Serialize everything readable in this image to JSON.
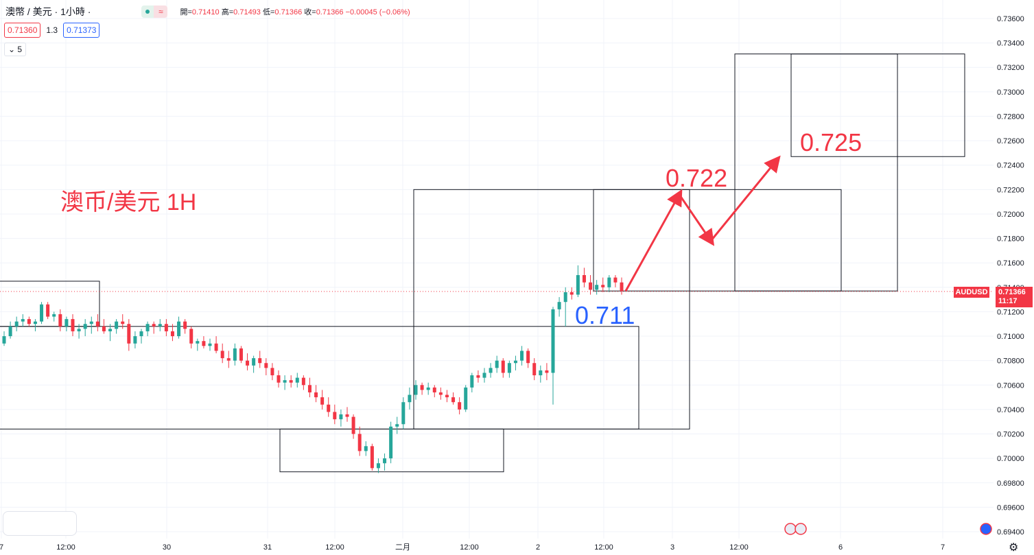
{
  "header": {
    "symbol_title": "澳幣 / 美元 · 1小時 ·",
    "open_label": "開=",
    "open_value": "0.71410",
    "high_label": "高=",
    "high_value": "0.71493",
    "low_label": "低=",
    "low_value": "0.71366",
    "close_label": "收=",
    "close_value": "0.71366",
    "change": "−0.00045 (−0.06%)"
  },
  "trade": {
    "sell_price": "0.71360",
    "spread": "1.3",
    "buy_price": "0.71373"
  },
  "indicator_count": "5",
  "price_tag": {
    "symbol": "AUDUSD",
    "price": "0.71366",
    "countdown": "11:17"
  },
  "annotations": {
    "title": "澳币/美元 1H",
    "support_label": "0.711",
    "target1_label": "0.722",
    "target2_label": "0.725"
  },
  "colors": {
    "up": "#26a69a",
    "down": "#f23645",
    "title_red": "#f23645",
    "blue_label": "#2962ff",
    "grid": "#f0f3fa",
    "price_line": "#f23645"
  },
  "icons": {
    "status": "market-open-dot-icon",
    "data": "wave-icon",
    "collapse": "chevron-down-icon",
    "settings": "gear-icon",
    "flags": "us-flag-icon"
  },
  "chart_data": {
    "type": "candlestick",
    "symbol": "AUDUSD",
    "interval": "1H",
    "y_axis_ticks": [
      "0.73600",
      "0.73400",
      "0.73200",
      "0.73000",
      "0.72800",
      "0.72600",
      "0.72400",
      "0.72200",
      "0.72000",
      "0.71800",
      "0.71600",
      "0.71400",
      "0.71200",
      "0.71000",
      "0.70800",
      "0.70600",
      "0.70400",
      "0.70200",
      "0.70000",
      "0.69800",
      "0.69600",
      "0.69400"
    ],
    "ylim": [
      0.6934,
      0.7374
    ],
    "x_axis_ticks": [
      "7",
      "12:00",
      "30",
      "31",
      "12:00",
      "二月",
      "12:00",
      "2",
      "12:00",
      "3",
      "12:00",
      "6",
      "7"
    ],
    "last_price": 0.71366,
    "text_annotations": [
      "澳币/美元 1H",
      "0.711",
      "0.722",
      "0.725"
    ],
    "candles_approx": [
      [
        0.7094,
        0.7104,
        0.7092,
        0.71
      ],
      [
        0.71,
        0.7112,
        0.7098,
        0.7108
      ],
      [
        0.7108,
        0.7116,
        0.7104,
        0.7112
      ],
      [
        0.7112,
        0.7118,
        0.7108,
        0.7114
      ],
      [
        0.7114,
        0.7116,
        0.7108,
        0.711
      ],
      [
        0.711,
        0.7114,
        0.7104,
        0.7112
      ],
      [
        0.7112,
        0.7128,
        0.711,
        0.7126
      ],
      [
        0.7126,
        0.7128,
        0.7114,
        0.7116
      ],
      [
        0.7116,
        0.712,
        0.7112,
        0.7118
      ],
      [
        0.7118,
        0.7122,
        0.7104,
        0.7108
      ],
      [
        0.7108,
        0.7116,
        0.7104,
        0.7114
      ],
      [
        0.7114,
        0.7118,
        0.71,
        0.7104
      ],
      [
        0.7104,
        0.711,
        0.7098,
        0.7106
      ],
      [
        0.7106,
        0.7114,
        0.71,
        0.711
      ],
      [
        0.711,
        0.7116,
        0.7102,
        0.7112
      ],
      [
        0.7112,
        0.7118,
        0.7104,
        0.7108
      ],
      [
        0.7108,
        0.7114,
        0.7102,
        0.7104
      ],
      [
        0.7104,
        0.711,
        0.7096,
        0.7106
      ],
      [
        0.7106,
        0.7114,
        0.7102,
        0.7112
      ],
      [
        0.7112,
        0.7118,
        0.7106,
        0.711
      ],
      [
        0.711,
        0.7114,
        0.7088,
        0.7094
      ],
      [
        0.7094,
        0.7104,
        0.709,
        0.71
      ],
      [
        0.71,
        0.7106,
        0.7094,
        0.7104
      ],
      [
        0.7104,
        0.7112,
        0.71,
        0.711
      ],
      [
        0.711,
        0.7112,
        0.7102,
        0.7108
      ],
      [
        0.7108,
        0.7114,
        0.7104,
        0.711
      ],
      [
        0.711,
        0.7114,
        0.71,
        0.7104
      ],
      [
        0.7104,
        0.711,
        0.7096,
        0.71
      ],
      [
        0.71,
        0.7116,
        0.7098,
        0.7112
      ],
      [
        0.7112,
        0.7114,
        0.7102,
        0.7106
      ],
      [
        0.7106,
        0.7108,
        0.709,
        0.7094
      ],
      [
        0.7094,
        0.7098,
        0.7088,
        0.7096
      ],
      [
        0.7096,
        0.71,
        0.709,
        0.7092
      ],
      [
        0.7092,
        0.7098,
        0.7088,
        0.7094
      ],
      [
        0.7094,
        0.71,
        0.7086,
        0.7088
      ],
      [
        0.7088,
        0.7094,
        0.7078,
        0.7082
      ],
      [
        0.7082,
        0.7088,
        0.7074,
        0.708
      ],
      [
        0.708,
        0.7094,
        0.7076,
        0.709
      ],
      [
        0.709,
        0.7092,
        0.7078,
        0.708
      ],
      [
        0.708,
        0.7086,
        0.7072,
        0.7076
      ],
      [
        0.7076,
        0.7084,
        0.707,
        0.7082
      ],
      [
        0.7082,
        0.7088,
        0.7074,
        0.7078
      ],
      [
        0.7078,
        0.7082,
        0.7068,
        0.7074
      ],
      [
        0.7074,
        0.7078,
        0.7064,
        0.7068
      ],
      [
        0.7068,
        0.7072,
        0.7058,
        0.7062
      ],
      [
        0.7062,
        0.7068,
        0.7056,
        0.7064
      ],
      [
        0.7064,
        0.7068,
        0.7058,
        0.7062
      ],
      [
        0.7062,
        0.707,
        0.7058,
        0.7066
      ],
      [
        0.7066,
        0.7068,
        0.7056,
        0.706
      ],
      [
        0.706,
        0.7066,
        0.705,
        0.7054
      ],
      [
        0.7054,
        0.706,
        0.7046,
        0.705
      ],
      [
        0.705,
        0.7056,
        0.704,
        0.7044
      ],
      [
        0.7044,
        0.705,
        0.7034,
        0.7038
      ],
      [
        0.7038,
        0.7044,
        0.7028,
        0.7032
      ],
      [
        0.7032,
        0.704,
        0.7026,
        0.7036
      ],
      [
        0.7036,
        0.7042,
        0.703,
        0.7034
      ],
      [
        0.7034,
        0.7036,
        0.7016,
        0.702
      ],
      [
        0.702,
        0.7026,
        0.7002,
        0.7006
      ],
      [
        0.7006,
        0.7014,
        0.7002,
        0.701
      ],
      [
        0.701,
        0.7012,
        0.699,
        0.6992
      ],
      [
        0.6992,
        0.7,
        0.6988,
        0.6996
      ],
      [
        0.6996,
        0.7004,
        0.699,
        0.7
      ],
      [
        0.7,
        0.703,
        0.6996,
        0.7026
      ],
      [
        0.7026,
        0.7034,
        0.702,
        0.7028
      ],
      [
        0.7028,
        0.705,
        0.7024,
        0.7046
      ],
      [
        0.7046,
        0.7058,
        0.704,
        0.7052
      ],
      [
        0.7052,
        0.7064,
        0.7048,
        0.706
      ],
      [
        0.706,
        0.7062,
        0.7052,
        0.7056
      ],
      [
        0.7056,
        0.7062,
        0.7052,
        0.7058
      ],
      [
        0.7058,
        0.706,
        0.705,
        0.7054
      ],
      [
        0.7054,
        0.7058,
        0.7048,
        0.7052
      ],
      [
        0.7052,
        0.7056,
        0.7046,
        0.705
      ],
      [
        0.705,
        0.7054,
        0.7044,
        0.7046
      ],
      [
        0.7046,
        0.705,
        0.7036,
        0.704
      ],
      [
        0.704,
        0.706,
        0.7038,
        0.7058
      ],
      [
        0.7058,
        0.707,
        0.7054,
        0.7068
      ],
      [
        0.7068,
        0.7072,
        0.7062,
        0.7066
      ],
      [
        0.7066,
        0.7074,
        0.7062,
        0.707
      ],
      [
        0.707,
        0.7078,
        0.7066,
        0.7074
      ],
      [
        0.7074,
        0.7084,
        0.707,
        0.708
      ],
      [
        0.708,
        0.7082,
        0.7066,
        0.707
      ],
      [
        0.707,
        0.708,
        0.7066,
        0.7078
      ],
      [
        0.7078,
        0.7084,
        0.7072,
        0.708
      ],
      [
        0.708,
        0.7092,
        0.7076,
        0.7088
      ],
      [
        0.7088,
        0.709,
        0.7074,
        0.7078
      ],
      [
        0.7078,
        0.7082,
        0.7064,
        0.7068
      ],
      [
        0.7068,
        0.7076,
        0.7062,
        0.7072
      ],
      [
        0.7072,
        0.7078,
        0.7064,
        0.707
      ],
      [
        0.707,
        0.7124,
        0.7044,
        0.7122
      ],
      [
        0.7122,
        0.7132,
        0.7116,
        0.7128
      ],
      [
        0.7128,
        0.714,
        0.7108,
        0.7136
      ],
      [
        0.7136,
        0.714,
        0.713,
        0.7134
      ],
      [
        0.7134,
        0.7158,
        0.7132,
        0.715
      ],
      [
        0.715,
        0.7156,
        0.714,
        0.7144
      ],
      [
        0.7144,
        0.715,
        0.7134,
        0.7138
      ],
      [
        0.7138,
        0.7146,
        0.7134,
        0.7142
      ],
      [
        0.7142,
        0.7148,
        0.7136,
        0.714
      ],
      [
        0.714,
        0.715,
        0.7136,
        0.7148
      ],
      [
        0.7148,
        0.715,
        0.714,
        0.7144
      ],
      [
        0.7144,
        0.7148,
        0.7134,
        0.7137
      ]
    ]
  }
}
